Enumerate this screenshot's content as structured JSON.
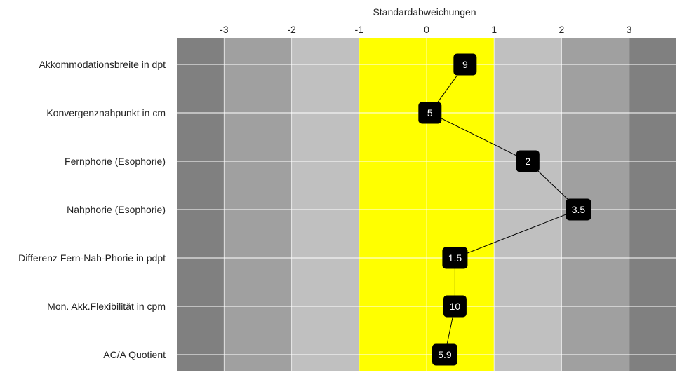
{
  "chart_data": {
    "type": "line",
    "title": "",
    "xlabel": "Standardabweichungen",
    "ylabel": "",
    "xlim": [
      -3.7,
      3.7
    ],
    "xticks": [
      {
        "value": -3,
        "label": "-3"
      },
      {
        "value": -2,
        "label": "-2"
      },
      {
        "value": -1,
        "label": "-1"
      },
      {
        "value": 0,
        "label": "0"
      },
      {
        "value": 1,
        "label": "1"
      },
      {
        "value": 2,
        "label": "2"
      },
      {
        "value": 3,
        "label": "3"
      }
    ],
    "bands": [
      {
        "from": -3.7,
        "to": -3,
        "color": "#808080"
      },
      {
        "from": -3,
        "to": -2,
        "color": "#a0a0a0"
      },
      {
        "from": -2,
        "to": -1,
        "color": "#c0c0c0"
      },
      {
        "from": -1,
        "to": 1,
        "color": "#ffff00"
      },
      {
        "from": 1,
        "to": 2,
        "color": "#c0c0c0"
      },
      {
        "from": 2,
        "to": 3,
        "color": "#a0a0a0"
      },
      {
        "from": 3,
        "to": 3.7,
        "color": "#808080"
      }
    ],
    "grid": true,
    "categories": [
      "Akkommodationsbreite in dpt",
      "Konvergenznahpunkt in cm",
      "Fernphorie (Esophorie)",
      "Nahphorie (Esophorie)",
      "Differenz Fern-Nah-Phorie in pdpt",
      "Mon. Akk.Flexibilität in cpm",
      "AC/A Quotient"
    ],
    "points": [
      {
        "x": 0.57,
        "label": "9"
      },
      {
        "x": 0.05,
        "label": "5"
      },
      {
        "x": 1.5,
        "label": "2"
      },
      {
        "x": 2.25,
        "label": "3.5"
      },
      {
        "x": 0.42,
        "label": "1.5"
      },
      {
        "x": 0.42,
        "label": "10"
      },
      {
        "x": 0.27,
        "label": "5.9"
      }
    ],
    "colors": {
      "marker": "#000000",
      "marker_text": "#ffffff",
      "line": "#000000",
      "grid": "#ffffff"
    }
  }
}
